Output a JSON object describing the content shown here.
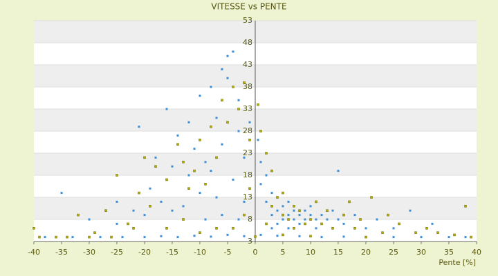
{
  "chart_data": {
    "type": "scatter",
    "title": "VITESSE vs PENTE",
    "x_label": "Pente [%]",
    "xlim": [
      -40,
      40
    ],
    "xticks": [
      -40,
      -35,
      -30,
      -25,
      -20,
      -15,
      -10,
      -5,
      0,
      5,
      10,
      15,
      20,
      25,
      30,
      35,
      40
    ],
    "ylim": [
      3,
      53
    ],
    "yticks": [
      3,
      8,
      13,
      18,
      23,
      28,
      33,
      38,
      43,
      48,
      53
    ],
    "grid": true,
    "series": [
      {
        "color": "#3a8fd8",
        "x": [
          -38,
          -33,
          -28,
          -24,
          -20,
          -17,
          -14,
          -11,
          -8,
          -5,
          -2,
          1,
          4,
          8,
          12,
          16,
          20,
          25,
          30,
          35,
          38,
          -21,
          -16,
          -14,
          -12,
          -11,
          -10,
          -9,
          -8,
          -7,
          -6,
          -5,
          -5,
          -4,
          -3,
          -3,
          -6,
          -8,
          -10,
          -12,
          -15,
          -18,
          -19,
          -22,
          -25,
          -30,
          -35,
          -13,
          -7,
          -4,
          -2,
          -1,
          -2,
          -3,
          -6,
          -9,
          -15,
          -17,
          -20,
          -25,
          1,
          2,
          2,
          3,
          3,
          4,
          5,
          5,
          6,
          6,
          7,
          7,
          8,
          8,
          9,
          9,
          10,
          10,
          11,
          12,
          13,
          14,
          15,
          15,
          16,
          18,
          20,
          22,
          25,
          28,
          32,
          0.5,
          1,
          3,
          4,
          6,
          11
        ],
        "values": [
          4,
          4,
          4,
          4,
          4,
          4.2,
          4,
          4.3,
          4.1,
          4.5,
          4.2,
          4.5,
          4.3,
          4.2,
          4,
          4.1,
          4,
          4,
          4,
          4,
          4,
          29,
          33,
          27,
          30,
          24,
          36,
          21,
          38,
          31,
          42,
          45,
          40,
          46,
          35,
          28,
          25,
          19,
          14,
          18,
          20,
          22,
          15,
          10,
          7,
          8,
          14,
          11,
          13,
          17,
          22,
          30,
          12,
          8,
          9,
          8,
          10,
          12,
          9,
          12,
          16,
          18,
          12,
          14,
          9,
          10,
          11,
          8,
          9,
          12,
          10,
          8,
          9,
          7,
          10,
          8,
          9,
          11,
          8,
          9,
          8,
          10,
          8,
          19,
          7,
          9,
          6,
          8,
          6,
          10,
          7,
          26,
          21,
          6,
          7,
          6,
          6
        ]
      },
      {
        "color": "#b5b000",
        "x": [
          -40,
          -39,
          -34,
          -32,
          -29,
          -27,
          -25,
          -23,
          -21,
          -20,
          -18,
          -16,
          -14,
          -13,
          -12,
          -11,
          -10,
          -9,
          -8,
          -7,
          -6,
          -5,
          -4,
          -3,
          -2,
          -1,
          -1,
          -2,
          -4,
          -7,
          -10,
          -13,
          -16,
          -19,
          -22,
          -26,
          -30,
          -36,
          0.5,
          1,
          2,
          3,
          2,
          3,
          4,
          5,
          5,
          6,
          7,
          7,
          8,
          9,
          10,
          11,
          12,
          13,
          14,
          16,
          17,
          18,
          19,
          21,
          23,
          24,
          26,
          29,
          31,
          33,
          36,
          38,
          39,
          20,
          10,
          5,
          0
        ],
        "values": [
          6,
          4,
          4,
          9,
          5,
          10,
          18,
          7,
          14,
          22,
          20,
          17,
          25,
          21,
          15,
          19,
          26,
          16,
          29,
          22,
          35,
          30,
          38,
          33,
          39,
          26,
          15,
          9,
          6,
          6,
          5,
          8,
          6,
          11,
          6,
          4,
          4,
          4,
          34,
          28,
          23,
          19,
          7,
          11,
          13,
          9,
          14,
          8,
          11,
          6,
          10,
          7,
          8,
          12,
          7,
          10,
          6,
          9,
          12,
          6,
          8,
          13,
          5,
          9,
          7,
          5,
          6,
          5,
          4.5,
          11,
          4,
          4,
          4.2,
          4.5,
          4.1
        ]
      }
    ]
  }
}
